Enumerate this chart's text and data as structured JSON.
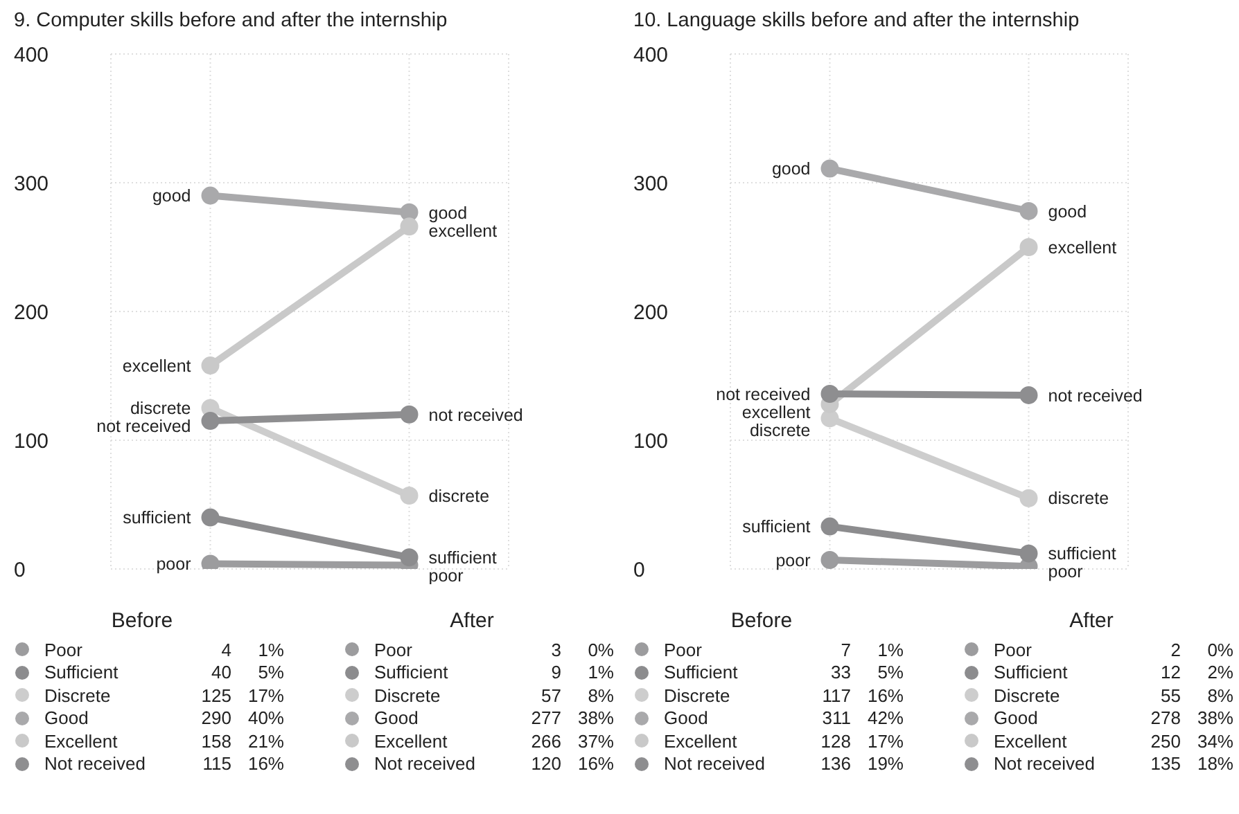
{
  "chart_data": [
    {
      "type": "line",
      "title": "9. Computer skills before and after the internship",
      "categories": [
        null,
        null
      ],
      "ylim": [
        0,
        400
      ],
      "yticks": [
        0,
        100,
        200,
        300,
        400
      ],
      "grid": true,
      "marker": "circle",
      "legend": "bottom",
      "series": [
        {
          "name": "Poor",
          "color": "#9c9c9e",
          "values": [
            4,
            3
          ]
        },
        {
          "name": "Sufficient",
          "color": "#8c8c8e",
          "values": [
            40,
            9
          ]
        },
        {
          "name": "Discrete",
          "color": "#cdcdcd",
          "values": [
            125,
            57
          ]
        },
        {
          "name": "Good",
          "color": "#a9a9ab",
          "values": [
            290,
            277
          ]
        },
        {
          "name": "Excellent",
          "color": "#c9c9c9",
          "values": [
            158,
            266
          ]
        },
        {
          "name": "Not received",
          "color": "#8e8e90",
          "values": [
            115,
            120
          ]
        }
      ],
      "annotations": [
        "Before",
        "4",
        "1%",
        "40",
        "5%",
        "125",
        "17%",
        "290",
        "40%",
        "158",
        "21%",
        "115",
        "16%",
        "After",
        "3",
        "0%",
        "9",
        "1%",
        "57",
        "8%",
        "277",
        "38%",
        "266",
        "37%",
        "120",
        "16%",
        "poor",
        "sufficient",
        "discrete",
        "good",
        "excellent",
        "not received",
        "poor",
        "sufficient",
        "discrete",
        "good",
        "excellent",
        "not received"
      ]
    },
    {
      "type": "line",
      "title": "10. Language skills before and after the internship",
      "categories": [
        null,
        null
      ],
      "ylim": [
        0,
        400
      ],
      "yticks": [
        0,
        100,
        200,
        300,
        400
      ],
      "grid": true,
      "marker": "circle",
      "legend": "bottom",
      "series": [
        {
          "name": "Poor",
          "color": "#9c9c9e",
          "values": [
            7,
            2
          ]
        },
        {
          "name": "Sufficient",
          "color": "#8c8c8e",
          "values": [
            33,
            12
          ]
        },
        {
          "name": "Discrete",
          "color": "#cdcdcd",
          "values": [
            117,
            55
          ]
        },
        {
          "name": "Good",
          "color": "#a9a9ab",
          "values": [
            311,
            278
          ]
        },
        {
          "name": "Excellent",
          "color": "#c9c9c9",
          "values": [
            128,
            250
          ]
        },
        {
          "name": "Not received",
          "color": "#8e8e90",
          "values": [
            136,
            135
          ]
        }
      ],
      "annotations": [
        "Before",
        "7",
        "1%",
        "33",
        "5%",
        "117",
        "16%",
        "311",
        "42%",
        "128",
        "17%",
        "136",
        "19%",
        "After",
        "2",
        "0%",
        "12",
        "2%",
        "55",
        "8%",
        "278",
        "38%",
        "250",
        "34%",
        "135",
        "18%",
        "poor",
        "sufficient",
        "discrete",
        "good",
        "excellent",
        "not received",
        "poor",
        "sufficient",
        "discrete",
        "good",
        "excellent",
        "not received"
      ]
    }
  ]
}
